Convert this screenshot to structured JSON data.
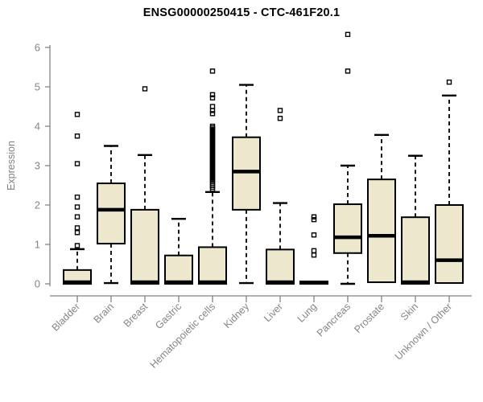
{
  "chart_data": {
    "type": "boxplot",
    "title": "ENSG00000250415 - CTC-461F20.1",
    "ylabel": "Expression",
    "xlabel": "",
    "ylim": [
      0,
      6.45
    ],
    "yticks": [
      0,
      1,
      2,
      3,
      4,
      5,
      6
    ],
    "grid": false,
    "legend": null,
    "categories": [
      "Bladder",
      "Brain",
      "Breast",
      "Gastric",
      "Hematopoietic cells",
      "Kidney",
      "Liver",
      "Lung",
      "Pancreas",
      "Prostate",
      "Skin",
      "Unknown / Other"
    ],
    "series": [
      {
        "category": "Bladder",
        "whislo": 0,
        "q1": 0,
        "med": 0.04,
        "q3": 0.35,
        "whishi": 0.88,
        "outliers": [
          0.97,
          1.3,
          1.42,
          1.7,
          1.95,
          2.2,
          3.05,
          3.75,
          4.3
        ]
      },
      {
        "category": "Brain",
        "whislo": 0.02,
        "q1": 1.02,
        "med": 1.88,
        "q3": 2.55,
        "whishi": 3.5,
        "outliers": []
      },
      {
        "category": "Breast",
        "whislo": 0,
        "q1": 0,
        "med": 0.04,
        "q3": 1.88,
        "whishi": 3.27,
        "outliers": [
          4.95
        ]
      },
      {
        "category": "Gastric",
        "whislo": 0,
        "q1": 0,
        "med": 0.04,
        "q3": 0.72,
        "whishi": 1.65,
        "outliers": []
      },
      {
        "category": "Hematopoietic cells",
        "whislo": 0,
        "q1": 0,
        "med": 0.04,
        "q3": 0.93,
        "whishi": 2.33,
        "outliers": [
          2.4,
          2.45,
          2.5,
          2.55,
          2.6,
          2.64,
          2.68,
          2.72,
          2.76,
          2.8,
          2.84,
          2.88,
          2.92,
          2.96,
          3.0,
          3.04,
          3.08,
          3.12,
          3.16,
          3.2,
          3.24,
          3.28,
          3.32,
          3.36,
          3.4,
          3.44,
          3.48,
          3.52,
          3.56,
          3.6,
          3.64,
          3.68,
          3.72,
          3.76,
          3.8,
          3.84,
          3.88,
          3.92,
          3.96,
          4.0,
          4.32,
          4.4,
          4.5,
          4.72,
          4.8,
          5.4
        ]
      },
      {
        "category": "Kidney",
        "whislo": 0.02,
        "q1": 1.88,
        "med": 2.85,
        "q3": 3.72,
        "whishi": 5.05,
        "outliers": []
      },
      {
        "category": "Liver",
        "whislo": 0,
        "q1": 0,
        "med": 0.04,
        "q3": 0.87,
        "whishi": 2.05,
        "outliers": [
          4.2,
          4.4
        ]
      },
      {
        "category": "Lung",
        "whislo": 0,
        "q1": 0,
        "med": 0.03,
        "q3": 0.06,
        "whishi": 0.06,
        "outliers": [
          0.73,
          0.84,
          1.24,
          1.63,
          1.7
        ]
      },
      {
        "category": "Pancreas",
        "whislo": 0,
        "q1": 0.78,
        "med": 1.18,
        "q3": 2.02,
        "whishi": 3.0,
        "outliers": [
          5.4,
          6.33
        ]
      },
      {
        "category": "Prostate",
        "whislo": 0.04,
        "q1": 0.04,
        "med": 1.22,
        "q3": 2.65,
        "whishi": 3.78,
        "outliers": []
      },
      {
        "category": "Skin",
        "whislo": 0,
        "q1": 0,
        "med": 0.04,
        "q3": 1.69,
        "whishi": 3.25,
        "outliers": []
      },
      {
        "category": "Unknown / Other",
        "whislo": 0,
        "q1": 0.02,
        "med": 0.6,
        "q3": 2.0,
        "whishi": 4.78,
        "outliers": [
          5.12
        ]
      }
    ],
    "colors": {
      "box_fill": "#EDE8CD",
      "box_border": "#000000",
      "median": "#000000",
      "whisker": "#000000",
      "outlier": "#000000",
      "axis": "#858585",
      "label_text": "#858585",
      "title_text": "#000000",
      "background": "#FFFFFF"
    }
  }
}
